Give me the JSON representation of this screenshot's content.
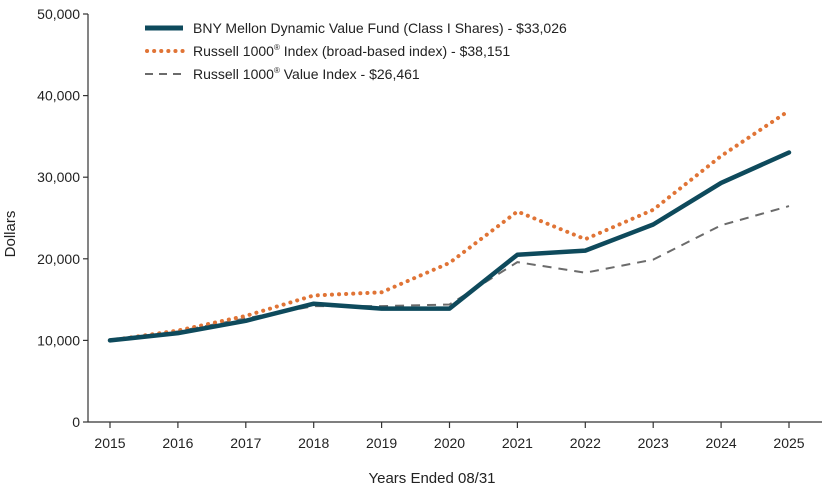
{
  "chart_data": {
    "type": "line",
    "title": "",
    "xlabel": "Years Ended 08/31",
    "ylabel": "Dollars",
    "ylim": [
      0,
      50000
    ],
    "yticks": [
      0,
      10000,
      20000,
      30000,
      40000,
      50000
    ],
    "ytick_labels": [
      "0",
      "10,000",
      "20,000",
      "30,000",
      "40,000",
      "50,000"
    ],
    "categories": [
      "2015",
      "2016",
      "2017",
      "2018",
      "2019",
      "2020",
      "2021",
      "2022",
      "2023",
      "2024",
      "2025"
    ],
    "grid": false,
    "legend_position": "top-left",
    "series": [
      {
        "name": "BNY Mellon Dynamic Value Fund (Class I Shares) - $33,026",
        "style": "solid-thick",
        "color": "#0e4a5c",
        "values": [
          10000,
          10900,
          12400,
          14500,
          13900,
          13900,
          20500,
          21000,
          24200,
          29300,
          33026
        ]
      },
      {
        "name_parts": [
          "Russell 1000",
          "®",
          " Index (broad-based index) - $38,151"
        ],
        "style": "dotted",
        "color": "#e07436",
        "values": [
          10000,
          11200,
          13000,
          15500,
          15900,
          19500,
          25800,
          22400,
          26000,
          32600,
          38151
        ]
      },
      {
        "name_parts": [
          "Russell 1000",
          "®",
          " Value Index - $26,461"
        ],
        "style": "dashed",
        "color": "#6b6b6b",
        "values": [
          10000,
          11100,
          12700,
          14200,
          14200,
          14400,
          19600,
          18300,
          19900,
          24100,
          26461
        ]
      }
    ]
  }
}
